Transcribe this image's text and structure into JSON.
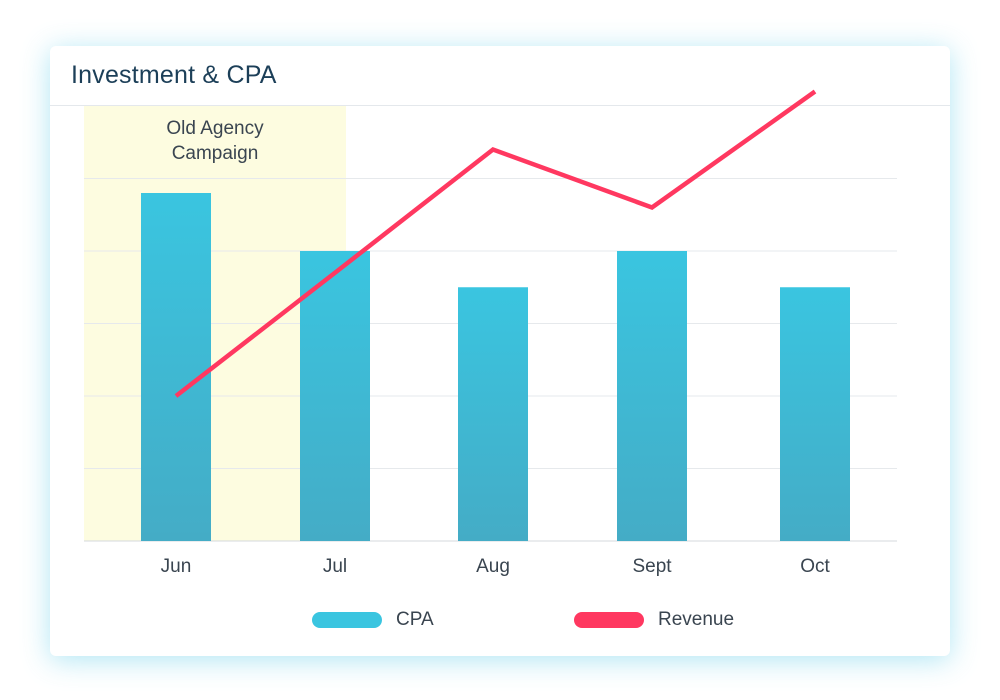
{
  "card": {
    "title": "Investment & CPA"
  },
  "colors": {
    "bar_top": "#3ac5e0",
    "bar_bottom": "#44acc6",
    "line": "#ff3860",
    "highlight": "#fdfce0",
    "grid": "#e6e9ec"
  },
  "chart_data": {
    "type": "bar",
    "title": "Investment & CPA",
    "categories": [
      "Jun",
      "Jul",
      "Aug",
      "Sept",
      "Oct"
    ],
    "series": [
      {
        "name": "CPA",
        "type": "bar",
        "values": [
          4.8,
          4.0,
          3.5,
          4.0,
          3.5
        ]
      },
      {
        "name": "Revenue",
        "type": "line",
        "values": [
          2.0,
          3.7,
          5.4,
          4.6,
          6.2
        ]
      }
    ],
    "ylim": [
      0,
      6
    ],
    "grid": true,
    "y_tick_labels_visible": false,
    "annotation": {
      "text_lines": [
        "Old Agency",
        "Campaign"
      ],
      "spans_categories": [
        "Jun",
        "Jul"
      ]
    },
    "legend": [
      {
        "label": "CPA",
        "color": "#3ac5e0"
      },
      {
        "label": "Revenue",
        "color": "#ff3860"
      }
    ],
    "legend_position": "bottom"
  }
}
